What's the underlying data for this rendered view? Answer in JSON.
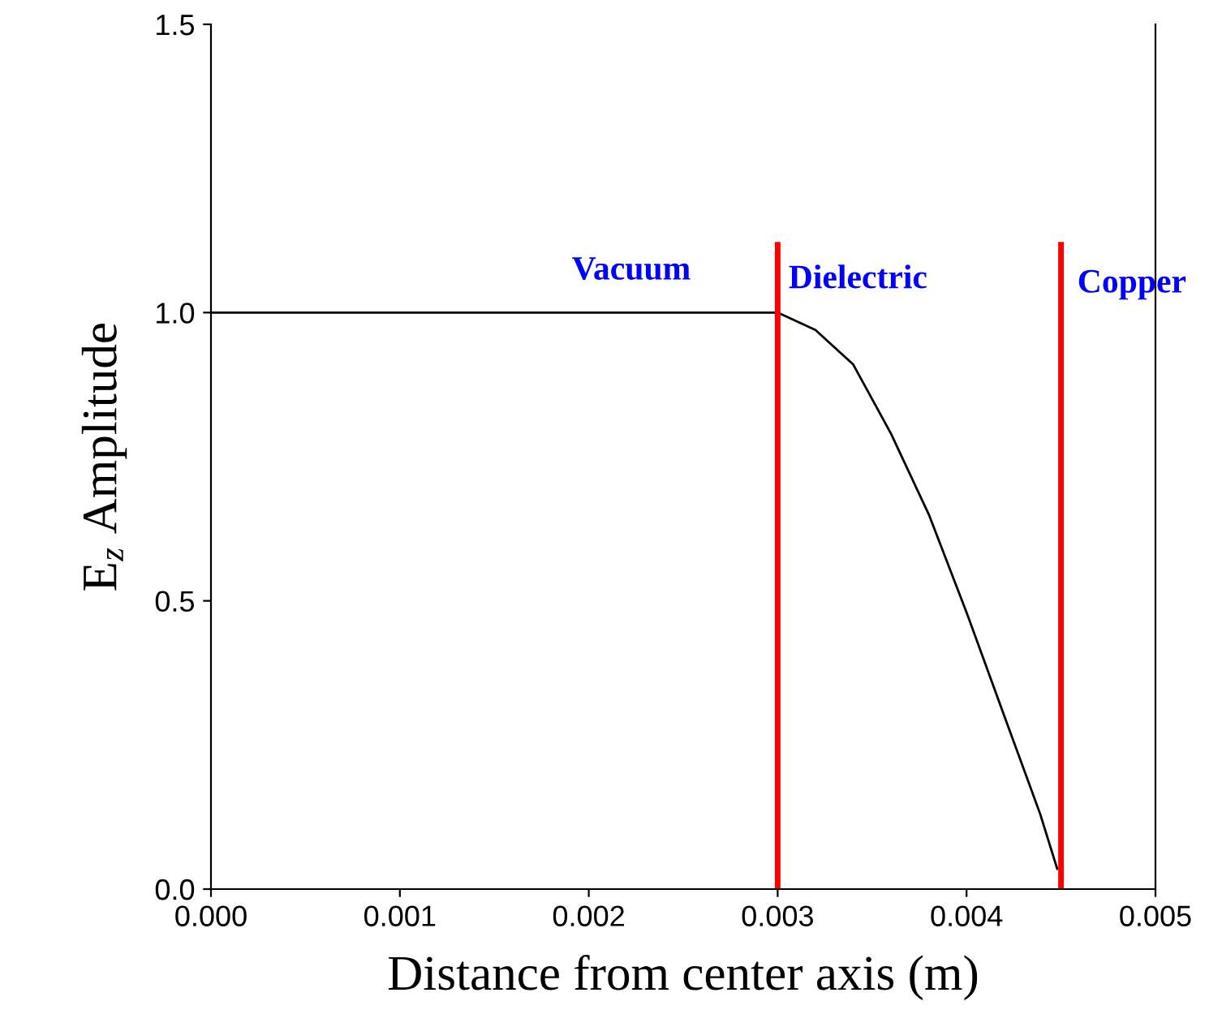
{
  "chart_data": {
    "type": "line",
    "xlabel": "Distance from center axis (m)",
    "ylabel": "E$_{z}$ Amplitude",
    "series": [
      {
        "color": "#000000",
        "x": [
          0.0,
          0.001,
          0.002,
          0.003,
          0.0032,
          0.0034,
          0.0036,
          0.0038,
          0.004,
          0.0042,
          0.00439,
          0.00448
        ],
        "values": [
          1.0,
          1.0,
          1.0,
          1.0,
          0.97,
          0.91,
          0.79,
          0.65,
          0.48,
          0.3,
          0.13,
          0.035
        ]
      }
    ],
    "xlim": [
      0.0,
      0.005
    ],
    "ylim": [
      0.0,
      1.5
    ],
    "xticks": [
      {
        "value": 0,
        "label": "0.000"
      },
      {
        "value": 0.001,
        "label": "0.001"
      },
      {
        "value": 0.002,
        "label": "0.002"
      },
      {
        "value": 0.003,
        "label": "0.003"
      },
      {
        "value": 0.004,
        "label": "0.004"
      },
      {
        "value": 0.005,
        "label": "0.005"
      }
    ],
    "yticks": [
      {
        "value": 0,
        "label": "0.0"
      },
      {
        "value": 0.5,
        "label": "0.5"
      },
      {
        "value": 1.0,
        "label": "1.0"
      },
      {
        "value": 1.5,
        "label": "1.5"
      }
    ],
    "ref_lines": [
      {
        "axis": "x",
        "value": 0.003,
        "color": "#ff0000"
      },
      {
        "axis": "x",
        "value": 0.0045,
        "color": "#ff0000"
      }
    ],
    "annotations": [
      "Vacuum",
      "Dielectric",
      "Copper"
    ],
    "grid": false,
    "legend": false
  }
}
